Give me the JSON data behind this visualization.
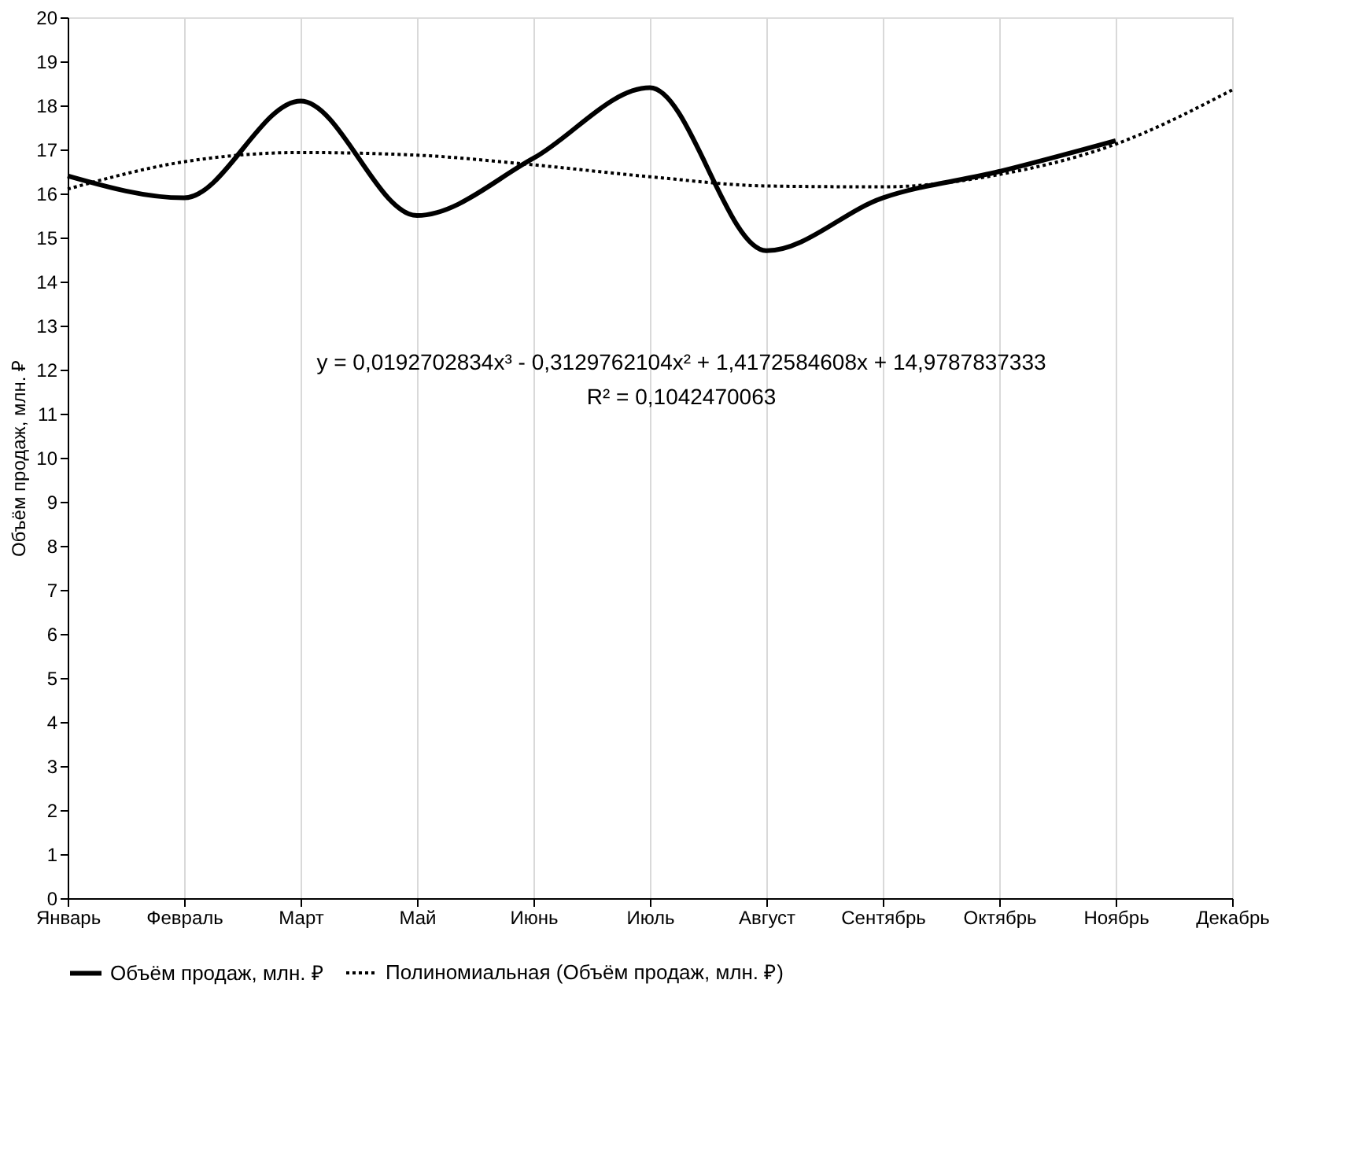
{
  "chart_data": {
    "type": "line",
    "ylabel": "Объём продаж, млн. ₽",
    "categories": [
      "Январь",
      "Февраль",
      "Март",
      "Май",
      "Июнь",
      "Июль",
      "Август",
      "Сентябрь",
      "Октябрь",
      "Ноябрь",
      "Декабрь"
    ],
    "series": [
      {
        "name": "Объём продаж, млн. ₽",
        "color": "#000000",
        "line_style": "solid",
        "values": [
          16.4,
          15.9,
          18.1,
          15.5,
          16.8,
          18.4,
          14.7,
          15.9,
          16.5,
          17.2,
          null
        ]
      },
      {
        "name": "Полиномиальная (Объём продаж, млн. ₽)",
        "type": "line",
        "color": "#000000",
        "line_style": "dotted",
        "values": [
          16.1,
          16.72,
          16.93,
          16.87,
          16.65,
          16.38,
          16.17,
          16.15,
          16.43,
          17.12,
          18.35
        ]
      }
    ],
    "ylim": [
      0,
      20
    ],
    "yticks": [
      0,
      1,
      2,
      3,
      4,
      5,
      6,
      7,
      8,
      9,
      10,
      11,
      12,
      13,
      14,
      15,
      16,
      17,
      18,
      19,
      20
    ],
    "grid": "x",
    "legend": "bottom",
    "marker": "none",
    "annotations": [
      "y = 0,0192702834x³ - 0,3129762104x² + 1,4172584608x + 14,9787837333",
      "R² = 0,1042470063"
    ]
  }
}
